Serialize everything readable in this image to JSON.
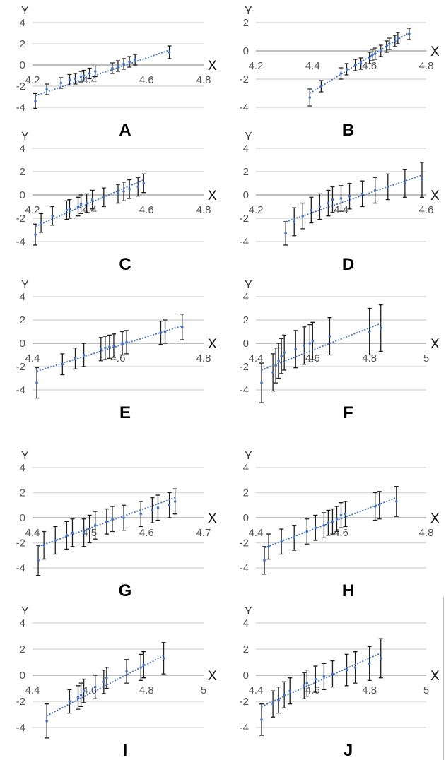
{
  "style": {
    "grid_color": "#d9d9d9",
    "zero_line_color": "#bfbfbf",
    "errorbar_color": "#1f1f1f",
    "point_color": "#4472c4",
    "trendline_color": "#4472c4",
    "trendline_style": "dotted"
  },
  "chart_data": [
    {
      "type": "scatter",
      "title": "A",
      "xlabel": "X",
      "ylabel": "Y",
      "xlim": [
        4.2,
        4.8
      ],
      "ylim": [
        -4,
        4
      ],
      "yticks": [
        -4,
        -2,
        0,
        2,
        4
      ],
      "xtick_labels": [
        "4.2",
        "4.4",
        "4.6",
        "4.8"
      ],
      "grid": true,
      "points": [
        {
          "x": 4.21,
          "y": -3.4,
          "err": 0.7
        },
        {
          "x": 4.25,
          "y": -2.3,
          "err": 0.5
        },
        {
          "x": 4.3,
          "y": -1.7,
          "err": 0.5
        },
        {
          "x": 4.33,
          "y": -1.4,
          "err": 0.5
        },
        {
          "x": 4.35,
          "y": -1.3,
          "err": 0.5
        },
        {
          "x": 4.37,
          "y": -1.1,
          "err": 0.5
        },
        {
          "x": 4.38,
          "y": -1.0,
          "err": 0.5
        },
        {
          "x": 4.4,
          "y": -0.8,
          "err": 0.5
        },
        {
          "x": 4.42,
          "y": -0.6,
          "err": 0.5
        },
        {
          "x": 4.48,
          "y": -0.3,
          "err": 0.5
        },
        {
          "x": 4.5,
          "y": -0.1,
          "err": 0.5
        },
        {
          "x": 4.52,
          "y": 0.1,
          "err": 0.5
        },
        {
          "x": 4.54,
          "y": 0.3,
          "err": 0.5
        },
        {
          "x": 4.56,
          "y": 0.5,
          "err": 0.5
        },
        {
          "x": 4.68,
          "y": 1.2,
          "err": 0.6
        }
      ],
      "trendline": {
        "x": [
          4.21,
          4.68
        ],
        "y": [
          -2.9,
          1.4
        ]
      }
    },
    {
      "type": "scatter",
      "title": "B",
      "xlabel": "X",
      "ylabel": "Y",
      "xlim": [
        4.2,
        4.8
      ],
      "ylim": [
        -4,
        2
      ],
      "yticks": [
        -4,
        -2,
        0,
        2
      ],
      "xtick_labels": [
        "4.2",
        "4.4",
        "4.6",
        "4.8"
      ],
      "grid": true,
      "points": [
        {
          "x": 4.39,
          "y": -3.3,
          "err": 0.6
        },
        {
          "x": 4.43,
          "y": -2.5,
          "err": 0.4
        },
        {
          "x": 4.5,
          "y": -1.6,
          "err": 0.4
        },
        {
          "x": 4.52,
          "y": -1.3,
          "err": 0.4
        },
        {
          "x": 4.55,
          "y": -1.0,
          "err": 0.4
        },
        {
          "x": 4.57,
          "y": -0.9,
          "err": 0.4
        },
        {
          "x": 4.6,
          "y": -0.5,
          "err": 0.4
        },
        {
          "x": 4.61,
          "y": -0.3,
          "err": 0.4
        },
        {
          "x": 4.62,
          "y": -0.2,
          "err": 0.4
        },
        {
          "x": 4.64,
          "y": 0.0,
          "err": 0.4
        },
        {
          "x": 4.66,
          "y": 0.3,
          "err": 0.4
        },
        {
          "x": 4.67,
          "y": 0.5,
          "err": 0.4
        },
        {
          "x": 4.69,
          "y": 0.7,
          "err": 0.4
        },
        {
          "x": 4.7,
          "y": 0.9,
          "err": 0.4
        },
        {
          "x": 4.74,
          "y": 1.2,
          "err": 0.4
        }
      ],
      "trendline": {
        "x": [
          4.39,
          4.74
        ],
        "y": [
          -3.0,
          1.3
        ]
      }
    },
    {
      "type": "scatter",
      "title": "C",
      "xlabel": "X",
      "ylabel": "Y",
      "xlim": [
        4.2,
        4.8
      ],
      "ylim": [
        -4,
        4
      ],
      "yticks": [
        -4,
        -2,
        0,
        2,
        4
      ],
      "xtick_labels": [
        "4.2",
        "4.4",
        "4.6",
        "4.8"
      ],
      "grid": true,
      "points": [
        {
          "x": 4.21,
          "y": -3.4,
          "err": 0.9
        },
        {
          "x": 4.23,
          "y": -2.4,
          "err": 0.8
        },
        {
          "x": 4.27,
          "y": -1.8,
          "err": 0.8
        },
        {
          "x": 4.32,
          "y": -1.3,
          "err": 0.8
        },
        {
          "x": 4.33,
          "y": -1.2,
          "err": 0.8
        },
        {
          "x": 4.36,
          "y": -1.0,
          "err": 0.8
        },
        {
          "x": 4.37,
          "y": -0.8,
          "err": 0.8
        },
        {
          "x": 4.39,
          "y": -0.7,
          "err": 0.8
        },
        {
          "x": 4.41,
          "y": -0.4,
          "err": 0.8
        },
        {
          "x": 4.45,
          "y": -0.2,
          "err": 0.8
        },
        {
          "x": 4.5,
          "y": 0.1,
          "err": 0.8
        },
        {
          "x": 4.52,
          "y": 0.3,
          "err": 0.8
        },
        {
          "x": 4.54,
          "y": 0.5,
          "err": 0.8
        },
        {
          "x": 4.57,
          "y": 0.7,
          "err": 0.8
        },
        {
          "x": 4.59,
          "y": 1.0,
          "err": 0.8
        }
      ],
      "trendline": {
        "x": [
          4.21,
          4.59
        ],
        "y": [
          -2.7,
          1.3
        ]
      }
    },
    {
      "type": "scatter",
      "title": "D",
      "xlabel": "X",
      "ylabel": "Y",
      "xlim": [
        4.2,
        4.6
      ],
      "ylim": [
        -4,
        4
      ],
      "yticks": [
        -4,
        -2,
        0,
        2,
        4
      ],
      "xtick_labels": [
        "4.2",
        "4.4",
        "4.6"
      ],
      "grid": true,
      "points": [
        {
          "x": 4.27,
          "y": -3.3,
          "err": 1.0
        },
        {
          "x": 4.29,
          "y": -2.3,
          "err": 1.2
        },
        {
          "x": 4.31,
          "y": -1.8,
          "err": 1.1
        },
        {
          "x": 4.33,
          "y": -1.3,
          "err": 1.1
        },
        {
          "x": 4.35,
          "y": -1.0,
          "err": 1.1
        },
        {
          "x": 4.37,
          "y": -0.7,
          "err": 1.1
        },
        {
          "x": 4.38,
          "y": -0.4,
          "err": 1.1
        },
        {
          "x": 4.4,
          "y": -0.3,
          "err": 1.1
        },
        {
          "x": 4.42,
          "y": -0.1,
          "err": 1.1
        },
        {
          "x": 4.45,
          "y": 0.1,
          "err": 1.1
        },
        {
          "x": 4.48,
          "y": 0.4,
          "err": 1.1
        },
        {
          "x": 4.51,
          "y": 0.7,
          "err": 1.1
        },
        {
          "x": 4.55,
          "y": 1.0,
          "err": 1.2
        },
        {
          "x": 4.59,
          "y": 1.3,
          "err": 1.5
        }
      ],
      "trendline": {
        "x": [
          4.27,
          4.59
        ],
        "y": [
          -2.3,
          1.7
        ]
      }
    },
    {
      "type": "scatter",
      "title": "E",
      "xlabel": "X",
      "ylabel": "Y",
      "xlim": [
        4.4,
        4.8
      ],
      "ylim": [
        -4,
        4
      ],
      "yticks": [
        -4,
        -2,
        0,
        2,
        4
      ],
      "xtick_labels": [
        "4.4",
        "4.6",
        "4.8"
      ],
      "grid": true,
      "points": [
        {
          "x": 4.41,
          "y": -3.4,
          "err": 1.3
        },
        {
          "x": 4.47,
          "y": -1.8,
          "err": 0.9
        },
        {
          "x": 4.5,
          "y": -1.3,
          "err": 0.9
        },
        {
          "x": 4.52,
          "y": -1.0,
          "err": 1.0
        },
        {
          "x": 4.56,
          "y": -0.5,
          "err": 1.0
        },
        {
          "x": 4.57,
          "y": -0.4,
          "err": 1.0
        },
        {
          "x": 4.58,
          "y": -0.3,
          "err": 1.0
        },
        {
          "x": 4.59,
          "y": -0.2,
          "err": 1.0
        },
        {
          "x": 4.61,
          "y": 0.0,
          "err": 1.0
        },
        {
          "x": 4.62,
          "y": 0.1,
          "err": 1.0
        },
        {
          "x": 4.7,
          "y": 0.9,
          "err": 1.0
        },
        {
          "x": 4.71,
          "y": 1.0,
          "err": 1.0
        },
        {
          "x": 4.75,
          "y": 1.4,
          "err": 1.1
        }
      ],
      "trendline": {
        "x": [
          4.41,
          4.75
        ],
        "y": [
          -2.4,
          1.5
        ]
      }
    },
    {
      "type": "scatter",
      "title": "F",
      "xlabel": "X",
      "ylabel": "Y",
      "xlim": [
        4.4,
        5.0
      ],
      "ylim": [
        -4,
        4
      ],
      "yticks": [
        -4,
        -2,
        0,
        2,
        4
      ],
      "xtick_labels": [
        "4.4",
        "4.6",
        "4.8",
        "5"
      ],
      "grid": true,
      "points": [
        {
          "x": 4.42,
          "y": -3.4,
          "err": 1.7
        },
        {
          "x": 4.46,
          "y": -2.5,
          "err": 1.6
        },
        {
          "x": 4.47,
          "y": -1.9,
          "err": 1.5
        },
        {
          "x": 4.48,
          "y": -1.5,
          "err": 1.5
        },
        {
          "x": 4.49,
          "y": -1.1,
          "err": 1.5
        },
        {
          "x": 4.5,
          "y": -0.8,
          "err": 1.5
        },
        {
          "x": 4.54,
          "y": -0.5,
          "err": 1.6
        },
        {
          "x": 4.57,
          "y": -0.2,
          "err": 1.6
        },
        {
          "x": 4.59,
          "y": 0.0,
          "err": 1.6
        },
        {
          "x": 4.6,
          "y": 0.2,
          "err": 1.6
        },
        {
          "x": 4.66,
          "y": 0.6,
          "err": 1.6
        },
        {
          "x": 4.8,
          "y": 1.0,
          "err": 2.0
        },
        {
          "x": 4.84,
          "y": 1.3,
          "err": 2.0
        }
      ],
      "trendline": {
        "x": [
          4.42,
          4.84
        ],
        "y": [
          -2.3,
          1.7
        ]
      }
    },
    {
      "type": "scatter",
      "title": "G",
      "xlabel": "X",
      "ylabel": "Y",
      "xlim": [
        4.4,
        4.7
      ],
      "ylim": [
        -4,
        4
      ],
      "yticks": [
        -4,
        -2,
        0,
        2,
        4
      ],
      "xtick_labels": [
        "4.4",
        "4.5",
        "4.6",
        "4.7"
      ],
      "grid": true,
      "points": [
        {
          "x": 4.41,
          "y": -3.4,
          "err": 1.2
        },
        {
          "x": 4.42,
          "y": -2.2,
          "err": 1.1
        },
        {
          "x": 4.44,
          "y": -1.8,
          "err": 1.1
        },
        {
          "x": 4.46,
          "y": -1.4,
          "err": 1.1
        },
        {
          "x": 4.47,
          "y": -1.2,
          "err": 1.1
        },
        {
          "x": 4.49,
          "y": -1.2,
          "err": 1.1
        },
        {
          "x": 4.5,
          "y": -0.9,
          "err": 1.1
        },
        {
          "x": 4.51,
          "y": -0.6,
          "err": 1.1
        },
        {
          "x": 4.53,
          "y": -0.3,
          "err": 1.0
        },
        {
          "x": 4.54,
          "y": -0.1,
          "err": 1.0
        },
        {
          "x": 4.56,
          "y": 0.0,
          "err": 1.0
        },
        {
          "x": 4.59,
          "y": 0.3,
          "err": 1.0
        },
        {
          "x": 4.61,
          "y": 0.6,
          "err": 1.0
        },
        {
          "x": 4.62,
          "y": 0.8,
          "err": 1.0
        },
        {
          "x": 4.64,
          "y": 1.0,
          "err": 1.0
        },
        {
          "x": 4.65,
          "y": 1.3,
          "err": 1.0
        }
      ],
      "trendline": {
        "x": [
          4.41,
          4.65
        ],
        "y": [
          -2.3,
          1.6
        ]
      }
    },
    {
      "type": "scatter",
      "title": "H",
      "xlabel": "X",
      "ylabel": "Y",
      "xlim": [
        4.4,
        4.8
      ],
      "ylim": [
        -4,
        4
      ],
      "yticks": [
        -4,
        -2,
        0,
        2,
        4
      ],
      "xtick_labels": [
        "4.4",
        "4.6",
        "4.8"
      ],
      "grid": true,
      "points": [
        {
          "x": 4.42,
          "y": -3.4,
          "err": 1.1
        },
        {
          "x": 4.43,
          "y": -2.3,
          "err": 1.0
        },
        {
          "x": 4.46,
          "y": -1.9,
          "err": 1.0
        },
        {
          "x": 4.49,
          "y": -1.6,
          "err": 1.0
        },
        {
          "x": 4.52,
          "y": -1.1,
          "err": 1.0
        },
        {
          "x": 4.54,
          "y": -0.8,
          "err": 1.0
        },
        {
          "x": 4.56,
          "y": -0.6,
          "err": 1.0
        },
        {
          "x": 4.57,
          "y": -0.4,
          "err": 1.0
        },
        {
          "x": 4.58,
          "y": -0.3,
          "err": 1.0
        },
        {
          "x": 4.59,
          "y": -0.1,
          "err": 1.0
        },
        {
          "x": 4.6,
          "y": 0.2,
          "err": 1.0
        },
        {
          "x": 4.61,
          "y": 0.3,
          "err": 1.0
        },
        {
          "x": 4.68,
          "y": 0.9,
          "err": 1.1
        },
        {
          "x": 4.69,
          "y": 1.0,
          "err": 1.1
        },
        {
          "x": 4.73,
          "y": 1.3,
          "err": 1.2
        }
      ],
      "trendline": {
        "x": [
          4.42,
          4.73
        ],
        "y": [
          -2.4,
          1.6
        ]
      }
    },
    {
      "type": "scatter",
      "title": "I",
      "xlabel": "X",
      "ylabel": "Y",
      "xlim": [
        4.4,
        5.0
      ],
      "ylim": [
        -4,
        4
      ],
      "yticks": [
        -4,
        -2,
        0,
        2,
        4
      ],
      "xtick_labels": [
        "4.4",
        "4.6",
        "4.8",
        "5"
      ],
      "grid": true,
      "points": [
        {
          "x": 4.45,
          "y": -3.5,
          "err": 1.3
        },
        {
          "x": 4.53,
          "y": -2.0,
          "err": 0.9
        },
        {
          "x": 4.56,
          "y": -1.7,
          "err": 0.9
        },
        {
          "x": 4.57,
          "y": -1.5,
          "err": 0.9
        },
        {
          "x": 4.58,
          "y": -1.2,
          "err": 0.9
        },
        {
          "x": 4.62,
          "y": -0.9,
          "err": 0.9
        },
        {
          "x": 4.65,
          "y": -0.5,
          "err": 0.9
        },
        {
          "x": 4.66,
          "y": -0.2,
          "err": 0.8
        },
        {
          "x": 4.73,
          "y": 0.3,
          "err": 0.9
        },
        {
          "x": 4.78,
          "y": 0.6,
          "err": 1.0
        },
        {
          "x": 4.79,
          "y": 0.8,
          "err": 1.0
        },
        {
          "x": 4.86,
          "y": 1.3,
          "err": 1.2
        }
      ],
      "trendline": {
        "x": [
          4.45,
          4.86
        ],
        "y": [
          -3.1,
          1.5
        ]
      }
    },
    {
      "type": "scatter",
      "title": "J",
      "xlabel": "X",
      "ylabel": "Y",
      "xlim": [
        4.4,
        5.0
      ],
      "ylim": [
        -4,
        4
      ],
      "yticks": [
        -4,
        -2,
        0,
        2,
        4
      ],
      "xtick_labels": [
        "4.4",
        "4.6",
        "4.8",
        "5"
      ],
      "grid": true,
      "points": [
        {
          "x": 4.42,
          "y": -3.4,
          "err": 1.2
        },
        {
          "x": 4.46,
          "y": -2.2,
          "err": 1.0
        },
        {
          "x": 4.48,
          "y": -1.9,
          "err": 1.0
        },
        {
          "x": 4.5,
          "y": -1.5,
          "err": 1.0
        },
        {
          "x": 4.52,
          "y": -1.2,
          "err": 1.0
        },
        {
          "x": 4.57,
          "y": -0.8,
          "err": 1.0
        },
        {
          "x": 4.58,
          "y": -0.6,
          "err": 1.0
        },
        {
          "x": 4.61,
          "y": -0.3,
          "err": 1.0
        },
        {
          "x": 4.64,
          "y": -0.1,
          "err": 1.0
        },
        {
          "x": 4.67,
          "y": 0.1,
          "err": 1.0
        },
        {
          "x": 4.72,
          "y": 0.4,
          "err": 1.2
        },
        {
          "x": 4.75,
          "y": 0.6,
          "err": 1.2
        },
        {
          "x": 4.8,
          "y": 0.9,
          "err": 1.3
        },
        {
          "x": 4.84,
          "y": 1.3,
          "err": 1.5
        }
      ],
      "trendline": {
        "x": [
          4.42,
          4.84
        ],
        "y": [
          -2.4,
          1.7
        ]
      }
    }
  ]
}
